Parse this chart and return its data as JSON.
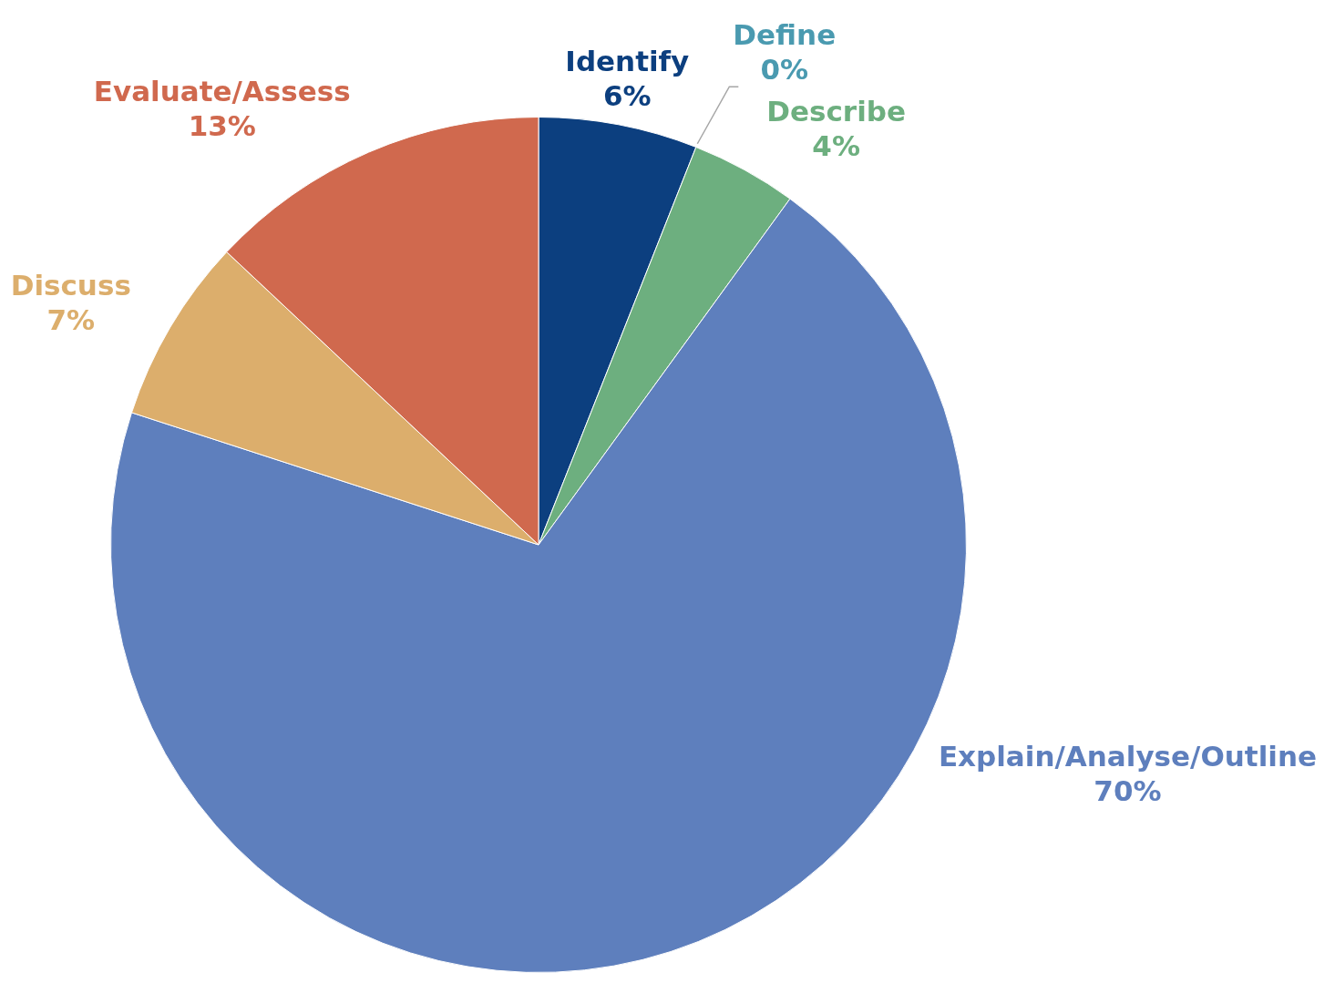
{
  "chart_data": {
    "type": "pie",
    "categories": [
      "Identify",
      "Define",
      "Describe",
      "Explain/Analyse/Outline",
      "Discuss",
      "Evaluate/Assess"
    ],
    "values": [
      6,
      0,
      4,
      70,
      7,
      13
    ],
    "value_labels": [
      "6%",
      "0%",
      "4%",
      "70%",
      "7%",
      "13%"
    ],
    "colors": [
      "#0c3f7f",
      "#4a9ab0",
      "#6daf7f",
      "#5e7fbd",
      "#dcae6c",
      "#d0694e"
    ],
    "legend": false
  }
}
